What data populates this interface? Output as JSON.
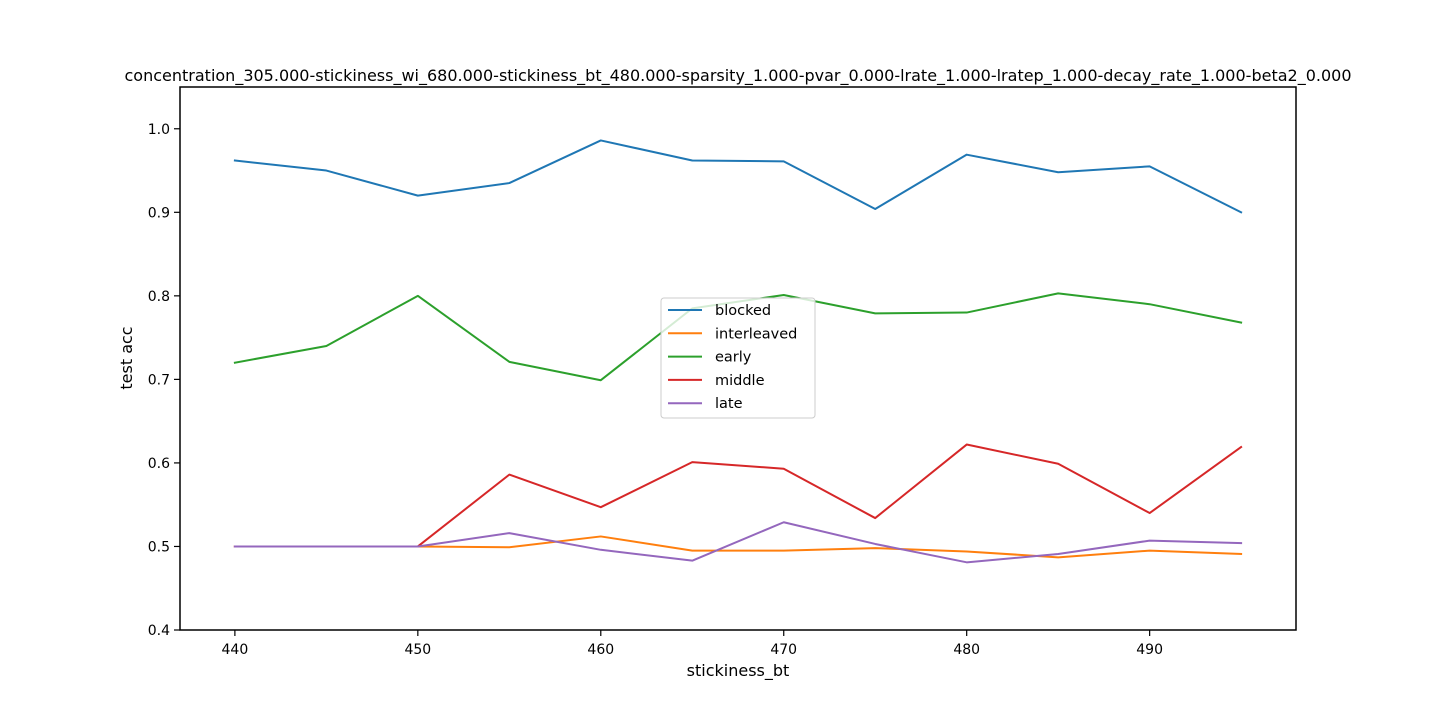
{
  "chart_data": {
    "type": "line",
    "title": "concentration_305.000-stickiness_wi_680.000-stickiness_bt_480.000-sparsity_1.000-pvar_0.000-lrate_1.000-lratep_1.000-decay_rate_1.000-beta2_0.000",
    "xlabel": "stickiness_bt",
    "ylabel": "test acc",
    "xlim": [
      437,
      498
    ],
    "ylim": [
      0.4,
      1.05
    ],
    "xticks": [
      440,
      450,
      460,
      470,
      480,
      490
    ],
    "yticks": [
      0.4,
      0.5,
      0.6,
      0.7,
      0.8,
      0.9,
      1.0
    ],
    "xtick_labels": [
      "440",
      "450",
      "460",
      "470",
      "480",
      "490"
    ],
    "ytick_labels": [
      "0.4",
      "0.5",
      "0.6",
      "0.7",
      "0.8",
      "0.9",
      "1.0"
    ],
    "grid": false,
    "legend_position": "center",
    "x": [
      440,
      445,
      450,
      455,
      460,
      465,
      470,
      475,
      480,
      485,
      490,
      495
    ],
    "series": [
      {
        "name": "blocked",
        "color": "#1f77b4",
        "values": [
          0.962,
          0.95,
          0.92,
          0.935,
          0.986,
          0.962,
          0.961,
          0.904,
          0.969,
          0.948,
          0.955,
          0.9
        ]
      },
      {
        "name": "interleaved",
        "color": "#ff7f0e",
        "values": [
          0.5,
          0.5,
          0.5,
          0.499,
          0.512,
          0.495,
          0.495,
          0.498,
          0.494,
          0.487,
          0.495,
          0.491
        ]
      },
      {
        "name": "early",
        "color": "#2ca02c",
        "values": [
          0.72,
          0.74,
          0.8,
          0.721,
          0.699,
          0.785,
          0.801,
          0.779,
          0.78,
          0.803,
          0.79,
          0.768
        ]
      },
      {
        "name": "middle",
        "color": "#d62728",
        "values": [
          0.5,
          0.5,
          0.5,
          0.586,
          0.547,
          0.601,
          0.593,
          0.534,
          0.622,
          0.599,
          0.54,
          0.619
        ]
      },
      {
        "name": "late",
        "color": "#9467bd",
        "values": [
          0.5,
          0.5,
          0.5,
          0.516,
          0.496,
          0.483,
          0.529,
          0.503,
          0.481,
          0.491,
          0.507,
          0.504
        ]
      }
    ]
  }
}
